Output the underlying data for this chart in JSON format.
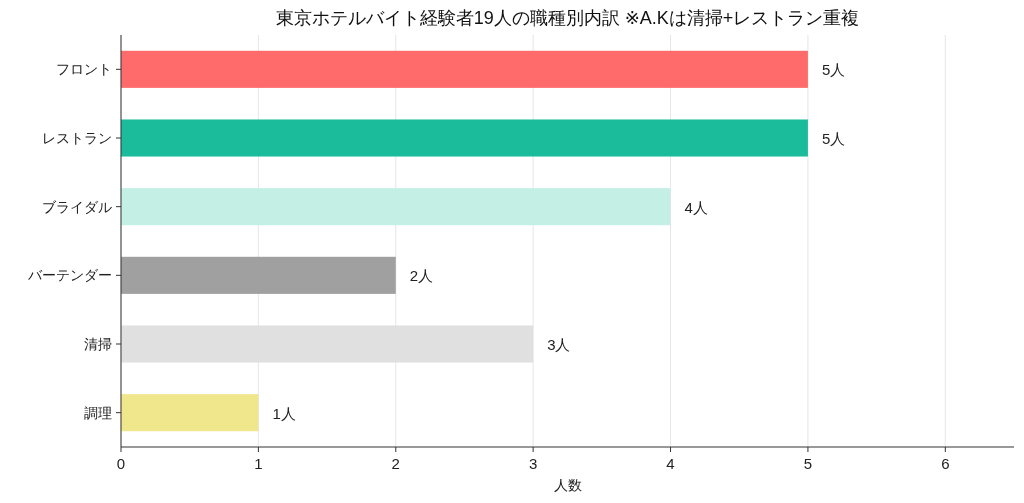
{
  "chart_data": {
    "type": "bar",
    "orientation": "horizontal",
    "title": "東京ホテルバイト経験者19人の職種別内訳 ※A.Kは清掃+レストラン重複",
    "xlabel": "人数",
    "categories": [
      "フロント",
      "レストラン",
      "ブライダル",
      "バーテンダー",
      "清掃",
      "調理"
    ],
    "values": [
      5,
      5,
      4,
      2,
      3,
      1
    ],
    "colors": [
      "#ff6b6b",
      "#1abc9c",
      "#c4efe5",
      "#a0a0a0",
      "#e0e0e0",
      "#f0e68c"
    ],
    "value_labels": [
      "5人",
      "5人",
      "4人",
      "2人",
      "3人",
      "1人"
    ],
    "xlim": [
      0,
      6.5
    ],
    "xticks": [
      0,
      1,
      2,
      3,
      4,
      5,
      6
    ],
    "grid": "x"
  }
}
